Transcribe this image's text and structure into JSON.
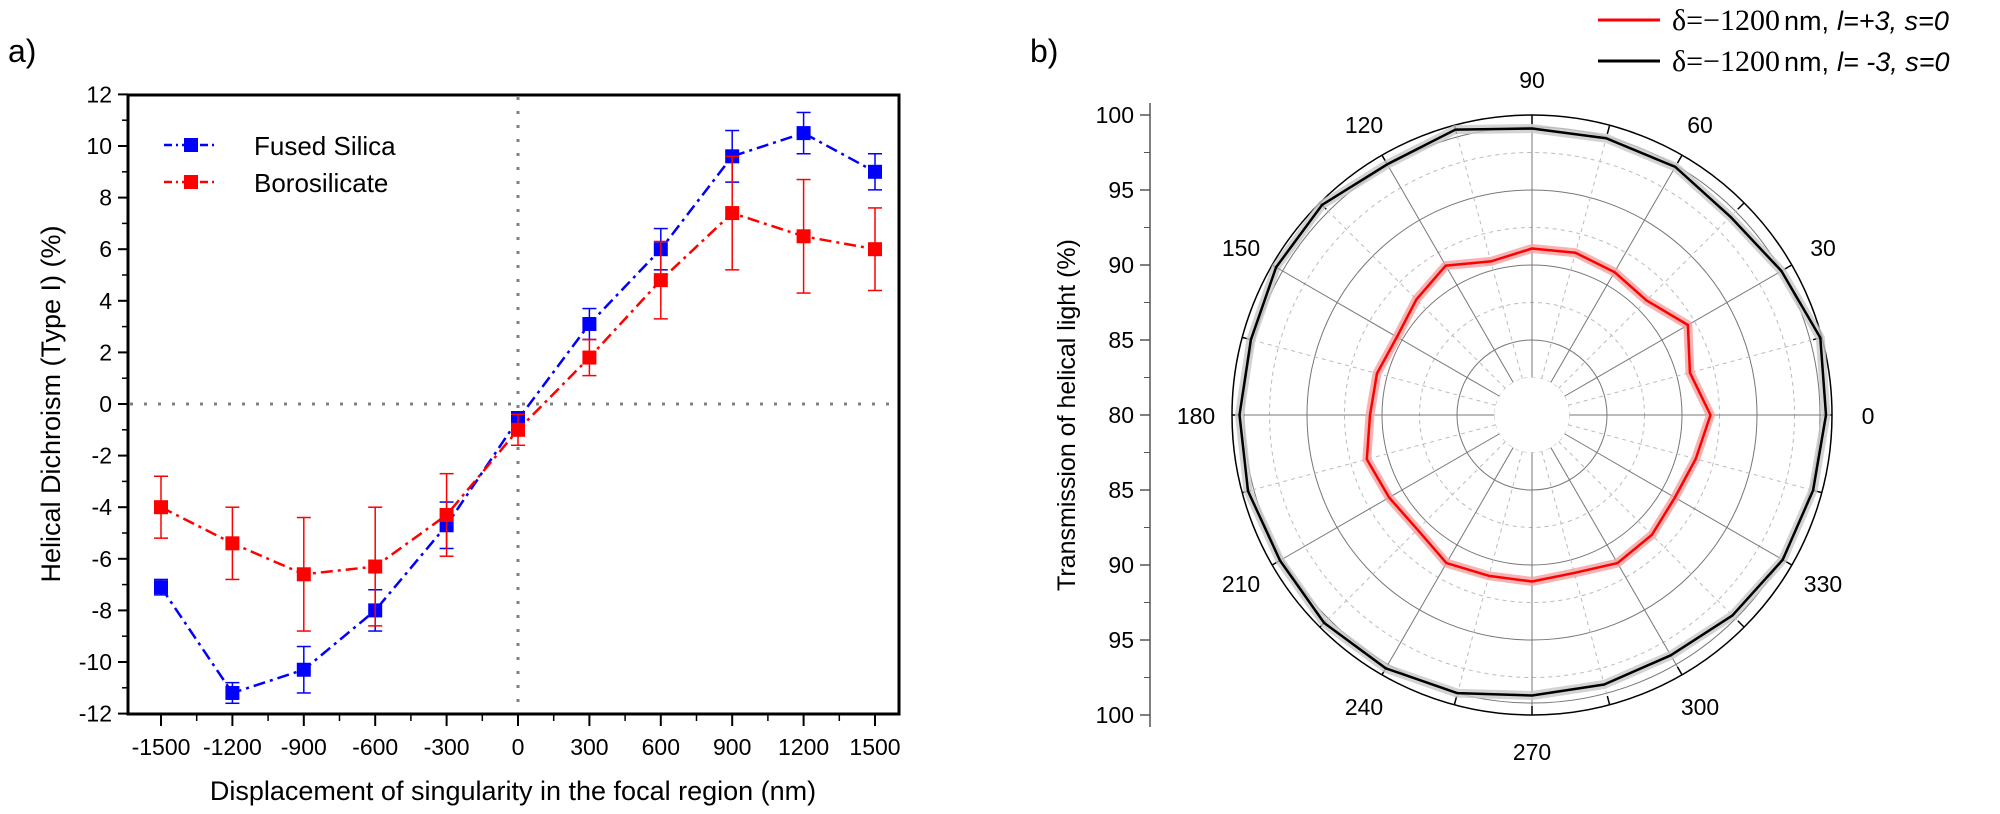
{
  "chart_data": [
    {
      "panel_label": "a)",
      "type": "line",
      "xlabel": "Displacement of singularity in the focal region (nm)",
      "ylabel": "Helical Dichroism (Type I) (%)",
      "xlim": [
        -1600,
        1600
      ],
      "ylim": [
        -12,
        12
      ],
      "x_ticks": [
        "-1500",
        "-1200",
        "-900",
        "-600",
        "-300",
        "0",
        "300",
        "600",
        "900",
        "1200",
        "1500"
      ],
      "y_ticks": [
        "-12",
        "-10",
        "-8",
        "-6",
        "-4",
        "-2",
        "0",
        "2",
        "4",
        "6",
        "8",
        "10",
        "12"
      ],
      "reference_lines": {
        "x": 0,
        "y": 0,
        "style": "dotted",
        "color": "#808080"
      },
      "legend_position": "top-left",
      "x": [
        -1500,
        -1200,
        -900,
        -600,
        -300,
        0,
        300,
        600,
        900,
        1200,
        1500
      ],
      "series": [
        {
          "name": "Fused Silica",
          "color": "#0000ff",
          "marker": "square",
          "line": "dash-dot",
          "values": [
            -7.1,
            -11.2,
            -10.3,
            -8.0,
            -4.7,
            -0.6,
            3.1,
            6.0,
            9.6,
            10.5,
            9.0
          ],
          "errors": [
            0.3,
            0.4,
            0.9,
            0.8,
            0.9,
            0.3,
            0.6,
            0.8,
            1.0,
            0.8,
            0.7
          ]
        },
        {
          "name": "Borosilicate",
          "color": "#ff0000",
          "marker": "square",
          "line": "dash-dot",
          "values": [
            -4.0,
            -5.4,
            -6.6,
            -6.3,
            -4.3,
            -1.0,
            1.8,
            4.8,
            7.4,
            6.5,
            6.0
          ],
          "errors": [
            1.2,
            1.4,
            2.2,
            2.3,
            1.6,
            0.6,
            0.7,
            1.5,
            2.2,
            2.2,
            1.6
          ]
        }
      ]
    },
    {
      "panel_label": "b)",
      "type": "polar",
      "ylabel": "Transmission of helical light (%)",
      "rlim": [
        80,
        100
      ],
      "r_ticks": [
        "100",
        "95",
        "90",
        "85",
        "80",
        "85",
        "90",
        "95",
        "100"
      ],
      "angle_ticks": [
        "0",
        "30",
        "60",
        "90",
        "120",
        "150",
        "180",
        "210",
        "240",
        "270",
        "300",
        "330"
      ],
      "legend_position": "top-right",
      "theta": [
        0,
        15,
        30,
        45,
        60,
        75,
        90,
        105,
        120,
        135,
        150,
        165,
        180,
        195,
        210,
        225,
        240,
        255,
        270,
        285,
        300,
        315,
        330,
        345
      ],
      "series": [
        {
          "legend": {
            "delta": "δ=−1200",
            "unit": "nm,",
            "params": "l=+3, s=0"
          },
          "color": "#ff0000",
          "band_color": "#f4a0a0",
          "values": [
            91.9,
            90.9,
            92.0,
            90.8,
            91.0,
            91.2,
            91.1,
            90.6,
            91.5,
            90.9,
            90.4,
            90.7,
            90.8,
            91.4,
            91.0,
            90.8,
            91.4,
            91.1,
            91.1,
            90.9,
            91.4,
            91.3,
            91.0,
            91.3
          ]
        },
        {
          "legend": {
            "delta": "δ=−1200",
            "unit": "nm,",
            "params": "l= -3, s=0"
          },
          "color": "#000000",
          "band_color": "#c8c8c8",
          "values": [
            99.6,
            99.9,
            99.2,
            98.7,
            99.1,
            99.1,
            99.1,
            99.7,
            99.3,
            99.8,
            99.7,
            99.4,
            99.5,
            99.6,
            99.4,
            99.6,
            99.5,
            99.2,
            98.7,
            98.6,
            98.5,
            98.9,
            99.3,
            99.4
          ]
        }
      ]
    }
  ]
}
